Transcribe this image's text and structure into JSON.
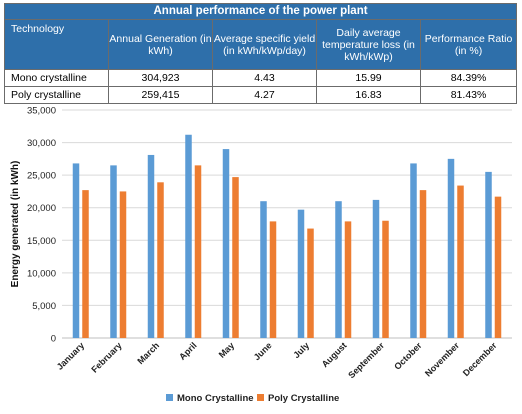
{
  "table": {
    "title": "Annual performance of the power plant",
    "headers": [
      "Technology",
      "Annual Generation (in kWh)",
      "Average specific yield (in kWh/kWp/day)",
      "Daily average temperature loss (in kWh/kWp)",
      "Performance Ratio (in %)"
    ],
    "rows": [
      [
        "Mono crystalline",
        "304,923",
        "4.43",
        "15.99",
        "84.39%"
      ],
      [
        "Poly crystalline",
        "259,415",
        "4.27",
        "16.83",
        "81.43%"
      ]
    ]
  },
  "chart_data": {
    "type": "bar",
    "title": "",
    "xlabel": "",
    "ylabel": "Energy generated (in kWh)",
    "ylim": [
      0,
      35000
    ],
    "yticks": [
      "0",
      "5,000",
      "10,000",
      "15,000",
      "20,000",
      "25,000",
      "30,000",
      "35,000"
    ],
    "ytick_values": [
      0,
      5000,
      10000,
      15000,
      20000,
      25000,
      30000,
      35000
    ],
    "grid": true,
    "legend_position": "bottom",
    "categories": [
      "January",
      "February",
      "March",
      "April",
      "May",
      "June",
      "July",
      "August",
      "September",
      "October",
      "November",
      "December"
    ],
    "series": [
      {
        "name": "Mono Crystalline",
        "color": "#5b9bd5",
        "values": [
          26800,
          26500,
          28100,
          31200,
          29000,
          21000,
          19700,
          21000,
          21200,
          26800,
          27500,
          25500
        ]
      },
      {
        "name": "Poly Crystalline",
        "color": "#ed7d31",
        "values": [
          22700,
          22500,
          23900,
          26500,
          24700,
          17900,
          16800,
          17900,
          18000,
          22700,
          23400,
          21700
        ]
      }
    ]
  },
  "colors": {
    "table_header": "#2e6faa",
    "grid": "#d9d9d9"
  }
}
